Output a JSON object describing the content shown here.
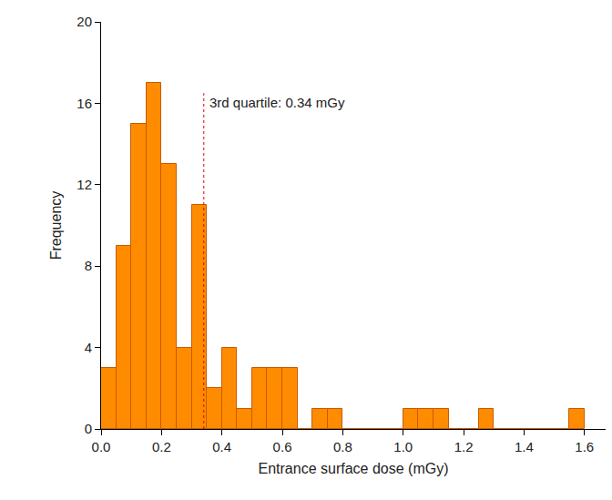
{
  "chart_data": {
    "type": "histogram",
    "x_label": "Entrance surface dose (mGy)",
    "y_label": "Frequency",
    "bins": [
      0.0,
      0.05,
      0.1,
      0.15,
      0.2,
      0.25,
      0.3,
      0.35,
      0.4,
      0.45,
      0.5,
      0.55,
      0.6,
      0.65,
      0.7,
      0.75,
      0.8,
      0.85,
      0.9,
      0.95,
      1.0,
      1.05,
      1.1,
      1.15,
      1.2,
      1.25,
      1.3,
      1.35,
      1.4,
      1.45,
      1.5,
      1.55,
      1.6
    ],
    "values": [
      3,
      9,
      15,
      17,
      13,
      4,
      11,
      2,
      4,
      1,
      3,
      3,
      3,
      0,
      1,
      1,
      0,
      0,
      0,
      0,
      1,
      1,
      1,
      0,
      0,
      1,
      0,
      0,
      0,
      0,
      0,
      1
    ],
    "color": "#ff8c00",
    "xlim": [
      0,
      1.67
    ],
    "xticks": [
      {
        "value": 0,
        "label": "0.0"
      },
      {
        "value": 0.2,
        "label": "0.2"
      },
      {
        "value": 0.4,
        "label": "0.4"
      },
      {
        "value": 0.6,
        "label": "0.6"
      },
      {
        "value": 0.8,
        "label": "0.8"
      },
      {
        "value": 1.0,
        "label": "1.0"
      },
      {
        "value": 1.2,
        "label": "1.2"
      },
      {
        "value": 1.4,
        "label": "1.4"
      },
      {
        "value": 1.6,
        "label": "1.6"
      }
    ],
    "ylim": [
      0,
      20
    ],
    "yticks": [
      0,
      4,
      8,
      12,
      16,
      20
    ],
    "grid": false,
    "annotations": [
      {
        "text": "3rd quartile: 0.34 mGy",
        "x": 0.34,
        "y": 16.5,
        "color": "#e00000",
        "line_style": "dashed"
      }
    ]
  }
}
